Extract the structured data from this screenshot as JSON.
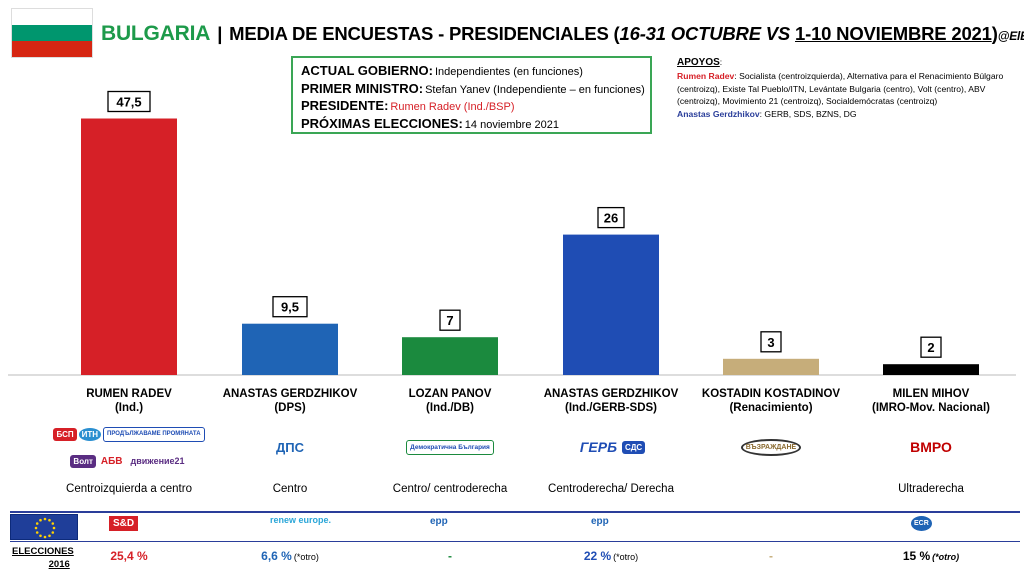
{
  "header": {
    "country": "BULGARIA",
    "separator": "|",
    "title_main": "MEDIA DE ENCUESTAS - PRESIDENCIALES (",
    "period1": "16-31 OCTUBRE",
    "vs": " VS ",
    "period2": "1-10 NOVIEMBRE 2021",
    "close": ")",
    "handle": "@ElElectoral",
    "flag_colors": [
      "#ffffff",
      "#00966e",
      "#d62612"
    ]
  },
  "government": {
    "rows": [
      {
        "key": "ACTUAL GOBIERNO:",
        "value": "Independientes (en funciones)",
        "red": false
      },
      {
        "key": "PRIMER MINISTRO:",
        "value": "Stefan Yanev (Independiente – en funciones)",
        "red": false
      },
      {
        "key": "PRESIDENTE:",
        "value": "Rumen Radev (Ind./BSP)",
        "red": true
      },
      {
        "key": "PRÓXIMAS ELECCIONES:",
        "value": "14 noviembre 2021",
        "red": false
      }
    ]
  },
  "support": {
    "heading": "APOYOS",
    "colon": ":",
    "radev_name": "Rumen Radev",
    "radev_text": ": Socialista (centroizquierda), Alternativa para el Renacimiento Búlgaro (centroizq), Existe Tal Pueblo/ITN, Levántate Bulgaria (centro), Volt (centro), ABV (centroizq), Movimiento 21 (centroizq), Socialdemócratas (centroizq)",
    "gerdzhikov_name": "Anastas Gerdzhikov",
    "gerdzhikov_text": ": GERB, SDS, BZNS, DG"
  },
  "chart_data": {
    "type": "bar",
    "categories": [
      "RUMEN RADEV (Ind.)",
      "ANASTAS GERDZHIKOV (DPS)",
      "LOZAN PANOV (Ind./DB)",
      "ANASTAS GERDZHIKOV (Ind./GERB-SDS)",
      "KOSTADIN KOSTADINOV (Renacimiento)",
      "MILEN MIHOV (IMRO-Mov. Nacional)"
    ],
    "values": [
      47.5,
      9.5,
      7,
      26,
      3,
      2
    ],
    "value_labels": [
      "47,5",
      "9,5",
      "7",
      "26",
      "3",
      "2"
    ],
    "colors": [
      "#d62027",
      "#1f64b5",
      "#1b8a3e",
      "#1f4db4",
      "#c6ad7a",
      "#000000"
    ],
    "ylim": [
      0,
      50
    ],
    "grid": false
  },
  "candidates": [
    {
      "name": "RUMEN RADEV",
      "party": "(Ind.)",
      "ideology": "Centroizquierda a centro",
      "logos": [
        "БСП",
        "ИТН",
        "ПРОДЪЛЖАВАМЕ ПРОМЯНАТА",
        "Волт",
        "АБВ",
        "движение21"
      ],
      "elec2016": "25,4 %",
      "elec2016_note": "",
      "elec_color": "#d62027"
    },
    {
      "name": "ANASTAS GERDZHIKOV",
      "party": "(DPS)",
      "ideology": "Centro",
      "logos": [
        "ДПС"
      ],
      "elec2016": "6,6 %",
      "elec2016_note": "(*otro)",
      "elec_color": "#1f64b5"
    },
    {
      "name": "LOZAN PANOV",
      "party": "(Ind./DB)",
      "ideology": "Centro/ centroderecha",
      "logos": [
        "Демократична България"
      ],
      "elec2016": "-",
      "elec2016_note": "",
      "elec_color": "#1b8a3e"
    },
    {
      "name": "ANASTAS GERDZHIKOV",
      "party": "(Ind./GERB-SDS)",
      "ideology": "Centroderecha/ Derecha",
      "logos": [
        "ГЕРБ",
        "СДС"
      ],
      "elec2016": "22 %",
      "elec2016_note": "(*otro)",
      "elec_color": "#1f4db4"
    },
    {
      "name": "KOSTADIN KOSTADINOV",
      "party": "(Renacimiento)",
      "ideology": "",
      "logos": [
        "ВЪЗРАЖДАНЕ"
      ],
      "elec2016": "-",
      "elec2016_note": "",
      "elec_color": "#c6ad7a"
    },
    {
      "name": "MILEN MIHOV",
      "party": "(IMRO-Mov. Nacional)",
      "ideology": "Ultraderecha",
      "logos": [
        "ВМРО"
      ],
      "elec2016": "15 %",
      "elec2016_note": "(*otro)",
      "elec_color": "#000000"
    }
  ],
  "eu_groups": [
    "S&D",
    "renew europe.",
    "epp",
    "epp",
    "",
    "ECR"
  ],
  "elections_label_line1": "ELECCIONES",
  "elections_label_line2": "2016"
}
